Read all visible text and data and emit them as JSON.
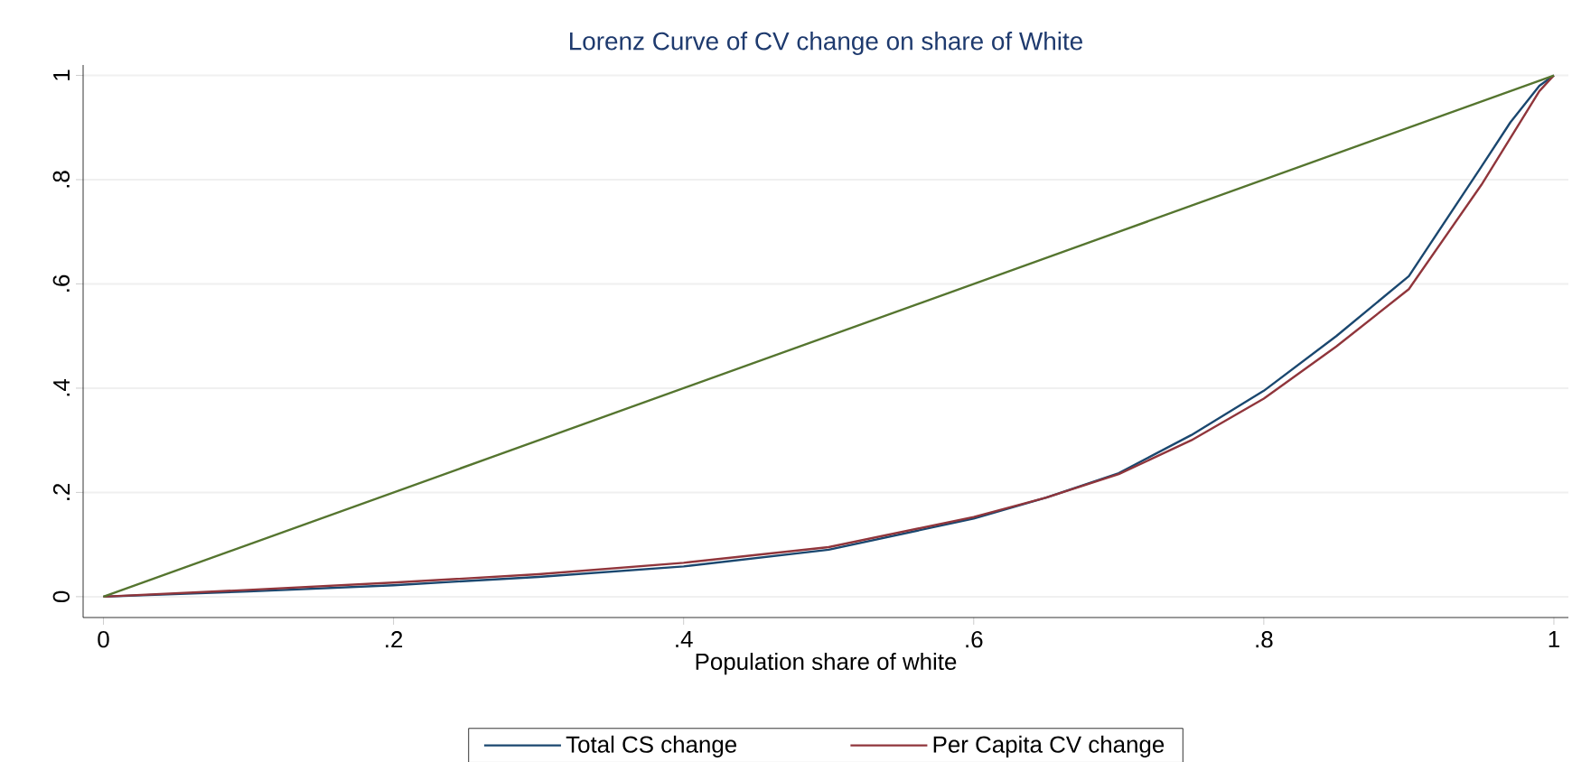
{
  "chart_data": {
    "type": "line",
    "title": "Lorenz Curve of CV change on share of White",
    "xlabel": "Population share of white",
    "xlim": [
      -0.014,
      1.01
    ],
    "ylim": [
      -0.04,
      1.02
    ],
    "xticks": [
      0,
      {
        "value": 0.2,
        "label": ".2"
      },
      {
        "value": 0.4,
        "label": ".4"
      },
      {
        "value": 0.6,
        "label": ".6"
      },
      {
        "value": 0.8,
        "label": ".8"
      },
      1
    ],
    "yticks": [
      0,
      {
        "value": 0.2,
        "label": ".2"
      },
      {
        "value": 0.4,
        "label": ".4"
      },
      {
        "value": 0.6,
        "label": ".6"
      },
      {
        "value": 0.8,
        "label": ".8"
      },
      1
    ],
    "grid": "y",
    "legend": "bottom",
    "marker": "none",
    "line_style": "solid",
    "series": [
      {
        "name": "Total CS change",
        "color": "#1a476f",
        "x": [
          0,
          0.1,
          0.2,
          0.3,
          0.4,
          0.5,
          0.6,
          0.65,
          0.7,
          0.75,
          0.8,
          0.85,
          0.9,
          0.95,
          0.97,
          0.99,
          1
        ],
        "values": [
          0,
          0.01,
          0.022,
          0.038,
          0.058,
          0.09,
          0.15,
          0.19,
          0.237,
          0.31,
          0.395,
          0.5,
          0.615,
          0.825,
          0.91,
          0.98,
          1
        ]
      },
      {
        "name": "Per Capita CV change",
        "color": "#90353b",
        "x": [
          0,
          0.1,
          0.2,
          0.3,
          0.4,
          0.5,
          0.6,
          0.65,
          0.7,
          0.75,
          0.8,
          0.85,
          0.9,
          0.95,
          0.97,
          0.99,
          1
        ],
        "values": [
          0,
          0.013,
          0.027,
          0.043,
          0.065,
          0.095,
          0.153,
          0.19,
          0.235,
          0.3,
          0.38,
          0.48,
          0.59,
          0.79,
          0.88,
          0.97,
          1
        ]
      },
      {
        "color": "#55752f",
        "x": [
          0,
          1
        ],
        "values": [
          0,
          1
        ]
      }
    ]
  }
}
